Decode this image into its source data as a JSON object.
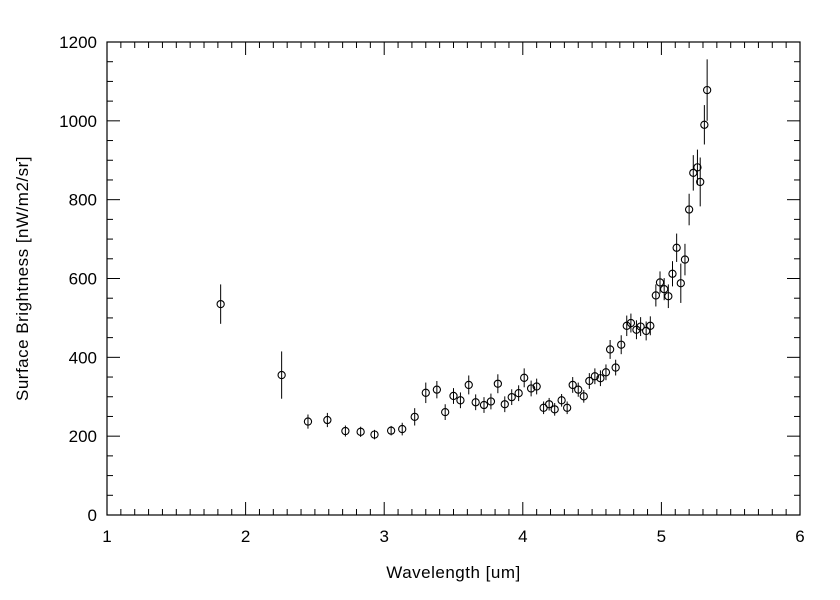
{
  "figure": {
    "background": "#ffffff",
    "frame_color": "#000000",
    "marker": "open-circle",
    "marker_color": "#000000",
    "errorbar_color": "#000000"
  },
  "chart_data": {
    "type": "scatter",
    "title": "",
    "xlabel": "Wavelength [um]",
    "ylabel": "Surface Brightness [nW/m2/sr]",
    "xlim": [
      1,
      6
    ],
    "ylim": [
      0,
      1200
    ],
    "x_major_ticks": [
      1,
      2,
      3,
      4,
      5,
      6
    ],
    "y_major_ticks": [
      0,
      200,
      400,
      600,
      800,
      1000,
      1200
    ],
    "x_minor_step": 0.1,
    "y_minor_step": 50,
    "grid": false,
    "legend": false,
    "series": [
      {
        "name": "surface-brightness",
        "x": [
          1.82,
          2.26,
          2.45,
          2.59,
          2.72,
          2.83,
          2.93,
          3.05,
          3.13,
          3.22,
          3.3,
          3.38,
          3.44,
          3.5,
          3.55,
          3.61,
          3.66,
          3.72,
          3.77,
          3.82,
          3.87,
          3.92,
          3.97,
          4.01,
          4.06,
          4.1,
          4.15,
          4.19,
          4.23,
          4.28,
          4.32,
          4.36,
          4.4,
          4.44,
          4.48,
          4.52,
          4.56,
          4.6,
          4.63,
          4.67,
          4.71,
          4.75,
          4.78,
          4.82,
          4.85,
          4.89,
          4.92,
          4.96,
          4.99,
          5.02,
          5.05,
          5.08,
          5.11,
          5.14,
          5.17,
          5.2,
          5.23,
          5.26,
          5.28,
          5.31,
          5.33
        ],
        "y": [
          535,
          355,
          237,
          241,
          213,
          211,
          204,
          214,
          218,
          249,
          310,
          318,
          261,
          302,
          291,
          330,
          286,
          279,
          288,
          333,
          281,
          299,
          309,
          348,
          321,
          326,
          272,
          281,
          268,
          291,
          272,
          330,
          318,
          301,
          340,
          352,
          347,
          362,
          420,
          374,
          432,
          480,
          487,
          470,
          478,
          467,
          480,
          557,
          590,
          573,
          555,
          612,
          678,
          588,
          648,
          775,
          868,
          882,
          845,
          990,
          1078
        ],
        "yerr": [
          50,
          60,
          18,
          18,
          14,
          13,
          12,
          12,
          16,
          22,
          26,
          22,
          20,
          20,
          20,
          24,
          20,
          20,
          20,
          24,
          20,
          20,
          20,
          24,
          20,
          20,
          16,
          16,
          16,
          16,
          16,
          20,
          18,
          16,
          20,
          20,
          20,
          20,
          24,
          20,
          24,
          26,
          24,
          24,
          24,
          24,
          24,
          28,
          28,
          28,
          30,
          32,
          36,
          50,
          40,
          40,
          45,
          45,
          62,
          50,
          78
        ]
      }
    ]
  }
}
